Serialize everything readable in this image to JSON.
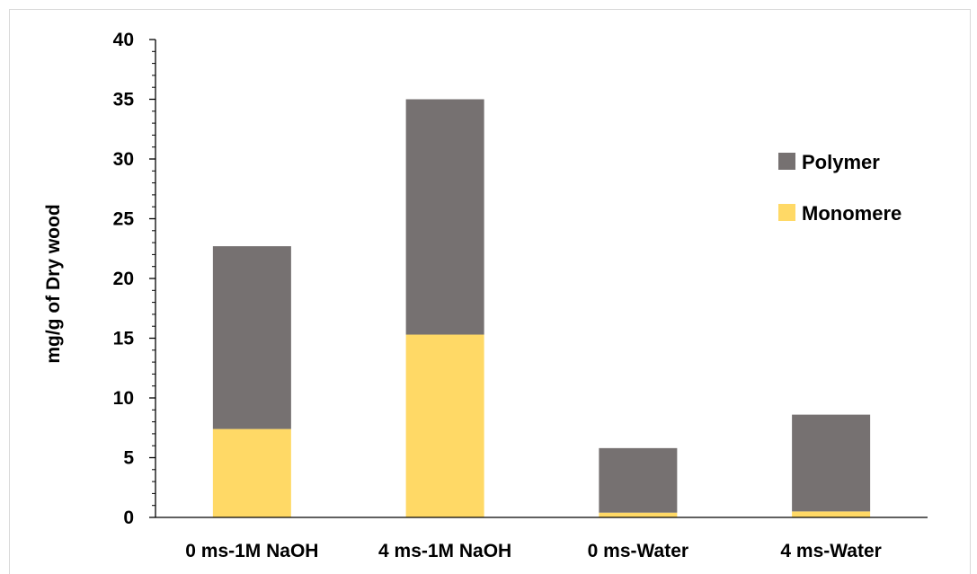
{
  "chart_data": {
    "type": "bar",
    "stacked": true,
    "title": "",
    "xlabel": "",
    "ylabel": "mg/g of Dry wood",
    "ylim": [
      0,
      40
    ],
    "yticks": [
      "0",
      "5",
      "10",
      "15",
      "20",
      "25",
      "30",
      "35",
      "40"
    ],
    "categories": [
      "0 ms-1M NaOH",
      "4 ms-1M NaOH",
      "0 ms-Water",
      "4 ms-Water"
    ],
    "series": [
      {
        "name": "Monomere",
        "color": "#ffd966",
        "values": [
          7.4,
          15.3,
          0.4,
          0.5
        ]
      },
      {
        "name": "Polymer",
        "color": "#767171",
        "values": [
          15.3,
          19.7,
          5.4,
          8.1
        ]
      }
    ],
    "legend": {
      "position": "right",
      "order": [
        "Polymer",
        "Monomere"
      ]
    },
    "grid": false
  }
}
